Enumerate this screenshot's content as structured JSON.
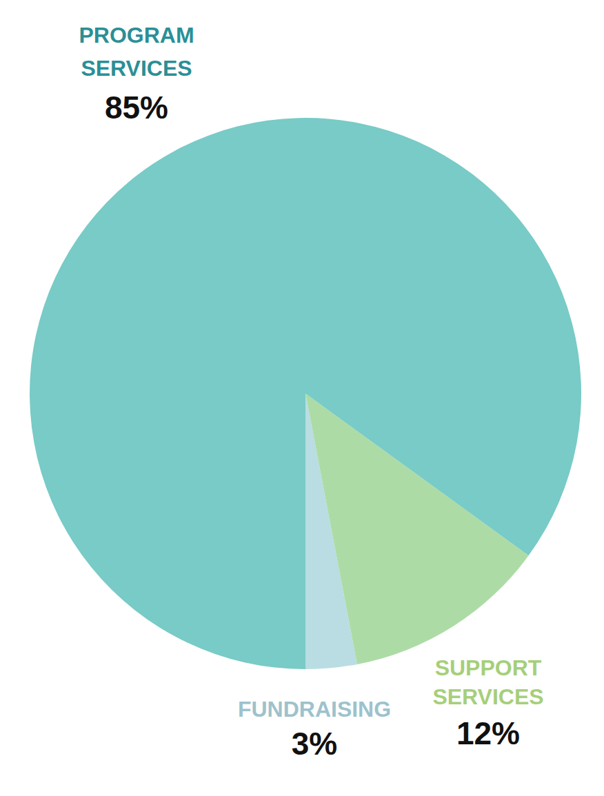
{
  "chart_data": {
    "type": "pie",
    "categories": [
      "FUNDRAISING",
      "SUPPORT SERVICES",
      "PROGRAM SERVICES"
    ],
    "values": [
      3,
      12,
      85
    ],
    "value_labels": [
      "3%",
      "12%",
      "85%"
    ],
    "colors": [
      "#b9dde2",
      "#addba6",
      "#78cbc6"
    ],
    "data_labels": true
  }
}
